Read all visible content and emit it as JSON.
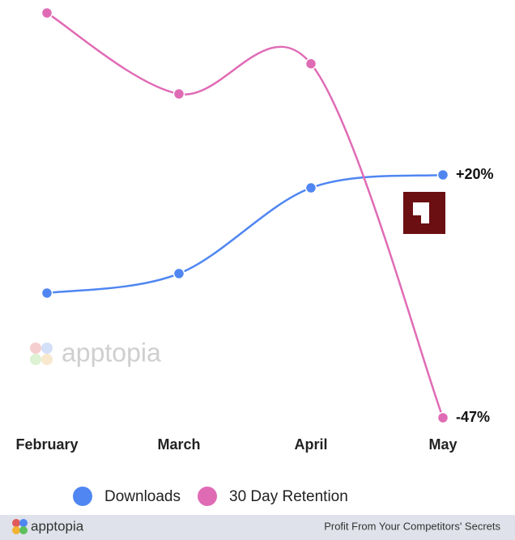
{
  "chart_data": {
    "type": "line",
    "categories": [
      "February",
      "March",
      "April",
      "May"
    ],
    "series": [
      {
        "name": "Downloads",
        "color": "#4f86f2",
        "values": [
          0,
          3.3,
          17.8,
          20
        ],
        "value_labels": [
          null,
          null,
          null,
          "+20%"
        ]
      },
      {
        "name": "30 Day Retention",
        "color": "#e06bb5",
        "values": [
          0,
          -9.4,
          -5.9,
          -47
        ],
        "value_labels": [
          null,
          null,
          null,
          "-47%"
        ]
      }
    ]
  },
  "watermark": "apptopia",
  "footer": {
    "brand": "apptopia",
    "tagline": "Profit From Your Competitors' Secrets"
  }
}
